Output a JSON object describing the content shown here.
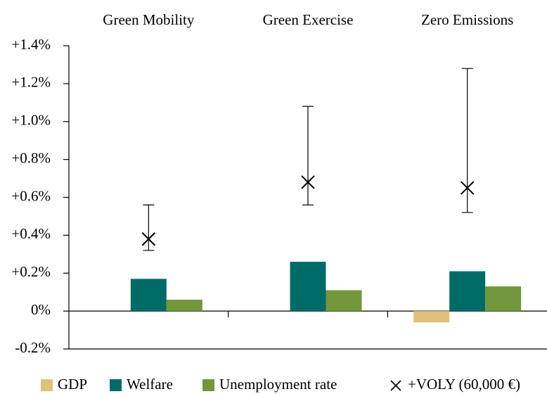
{
  "chart_data": {
    "type": "bar",
    "categories": [
      "Green Mobility",
      "Green Exercise",
      "Zero Emissions"
    ],
    "series": [
      {
        "name": "GDP",
        "color": "#e0c07e",
        "values": [
          0,
          0,
          -0.06
        ]
      },
      {
        "name": "Welfare",
        "color": "#006b66",
        "values": [
          0.17,
          0.26,
          0.21
        ]
      },
      {
        "name": "Unemployment rate",
        "color": "#71963c",
        "values": [
          0.06,
          0.11,
          0.13
        ]
      },
      {
        "name": "+VOLY (60,000 €)",
        "color": "#000000",
        "marker": "x",
        "values": [
          0.38,
          0.68,
          0.65
        ],
        "lower": [
          0.32,
          0.56,
          0.52
        ],
        "upper": [
          0.56,
          1.08,
          1.28
        ]
      }
    ],
    "ylim": [
      -0.2,
      1.4
    ],
    "yticks": [
      {
        "value": -0.2,
        "label": "-0.2%"
      },
      {
        "value": 0,
        "label": "0%"
      },
      {
        "value": 0.2,
        "label": "+0.2%"
      },
      {
        "value": 0.4,
        "label": "+0.4%"
      },
      {
        "value": 0.6,
        "label": "+0.6%"
      },
      {
        "value": 0.8,
        "label": "+0.8%"
      },
      {
        "value": 1.0,
        "label": "+1.0%"
      },
      {
        "value": 1.2,
        "label": "+1.2%"
      },
      {
        "value": 1.4,
        "label": "+1.4%"
      }
    ],
    "legend": "bottom"
  }
}
